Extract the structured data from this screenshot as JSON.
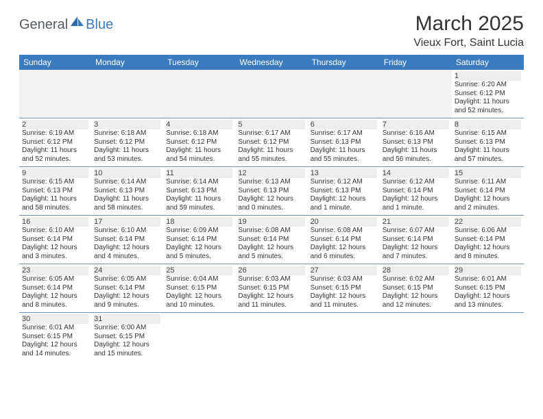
{
  "logo": {
    "text1": "General",
    "text2": "Blue"
  },
  "title": "March 2025",
  "location": "Vieux Fort, Saint Lucia",
  "colors": {
    "header_bg": "#3b7bbf",
    "header_text": "#ffffff",
    "cell_border": "#6b8fb5",
    "blank_bg": "#f2f2f2",
    "daynum_bg": "#eeeeee"
  },
  "weekdays": [
    "Sunday",
    "Monday",
    "Tuesday",
    "Wednesday",
    "Thursday",
    "Friday",
    "Saturday"
  ],
  "leadingBlanks": 6,
  "days": [
    {
      "n": 1,
      "sunrise": "6:20 AM",
      "sunset": "6:12 PM",
      "daylight": "11 hours and 52 minutes."
    },
    {
      "n": 2,
      "sunrise": "6:19 AM",
      "sunset": "6:12 PM",
      "daylight": "11 hours and 52 minutes."
    },
    {
      "n": 3,
      "sunrise": "6:18 AM",
      "sunset": "6:12 PM",
      "daylight": "11 hours and 53 minutes."
    },
    {
      "n": 4,
      "sunrise": "6:18 AM",
      "sunset": "6:12 PM",
      "daylight": "11 hours and 54 minutes."
    },
    {
      "n": 5,
      "sunrise": "6:17 AM",
      "sunset": "6:12 PM",
      "daylight": "11 hours and 55 minutes."
    },
    {
      "n": 6,
      "sunrise": "6:17 AM",
      "sunset": "6:13 PM",
      "daylight": "11 hours and 55 minutes."
    },
    {
      "n": 7,
      "sunrise": "6:16 AM",
      "sunset": "6:13 PM",
      "daylight": "11 hours and 56 minutes."
    },
    {
      "n": 8,
      "sunrise": "6:15 AM",
      "sunset": "6:13 PM",
      "daylight": "11 hours and 57 minutes."
    },
    {
      "n": 9,
      "sunrise": "6:15 AM",
      "sunset": "6:13 PM",
      "daylight": "11 hours and 58 minutes."
    },
    {
      "n": 10,
      "sunrise": "6:14 AM",
      "sunset": "6:13 PM",
      "daylight": "11 hours and 58 minutes."
    },
    {
      "n": 11,
      "sunrise": "6:14 AM",
      "sunset": "6:13 PM",
      "daylight": "11 hours and 59 minutes."
    },
    {
      "n": 12,
      "sunrise": "6:13 AM",
      "sunset": "6:13 PM",
      "daylight": "12 hours and 0 minutes."
    },
    {
      "n": 13,
      "sunrise": "6:12 AM",
      "sunset": "6:13 PM",
      "daylight": "12 hours and 1 minute."
    },
    {
      "n": 14,
      "sunrise": "6:12 AM",
      "sunset": "6:14 PM",
      "daylight": "12 hours and 1 minute."
    },
    {
      "n": 15,
      "sunrise": "6:11 AM",
      "sunset": "6:14 PM",
      "daylight": "12 hours and 2 minutes."
    },
    {
      "n": 16,
      "sunrise": "6:10 AM",
      "sunset": "6:14 PM",
      "daylight": "12 hours and 3 minutes."
    },
    {
      "n": 17,
      "sunrise": "6:10 AM",
      "sunset": "6:14 PM",
      "daylight": "12 hours and 4 minutes."
    },
    {
      "n": 18,
      "sunrise": "6:09 AM",
      "sunset": "6:14 PM",
      "daylight": "12 hours and 5 minutes."
    },
    {
      "n": 19,
      "sunrise": "6:08 AM",
      "sunset": "6:14 PM",
      "daylight": "12 hours and 5 minutes."
    },
    {
      "n": 20,
      "sunrise": "6:08 AM",
      "sunset": "6:14 PM",
      "daylight": "12 hours and 6 minutes."
    },
    {
      "n": 21,
      "sunrise": "6:07 AM",
      "sunset": "6:14 PM",
      "daylight": "12 hours and 7 minutes."
    },
    {
      "n": 22,
      "sunrise": "6:06 AM",
      "sunset": "6:14 PM",
      "daylight": "12 hours and 8 minutes."
    },
    {
      "n": 23,
      "sunrise": "6:05 AM",
      "sunset": "6:14 PM",
      "daylight": "12 hours and 8 minutes."
    },
    {
      "n": 24,
      "sunrise": "6:05 AM",
      "sunset": "6:14 PM",
      "daylight": "12 hours and 9 minutes."
    },
    {
      "n": 25,
      "sunrise": "6:04 AM",
      "sunset": "6:15 PM",
      "daylight": "12 hours and 10 minutes."
    },
    {
      "n": 26,
      "sunrise": "6:03 AM",
      "sunset": "6:15 PM",
      "daylight": "12 hours and 11 minutes."
    },
    {
      "n": 27,
      "sunrise": "6:03 AM",
      "sunset": "6:15 PM",
      "daylight": "12 hours and 11 minutes."
    },
    {
      "n": 28,
      "sunrise": "6:02 AM",
      "sunset": "6:15 PM",
      "daylight": "12 hours and 12 minutes."
    },
    {
      "n": 29,
      "sunrise": "6:01 AM",
      "sunset": "6:15 PM",
      "daylight": "12 hours and 13 minutes."
    },
    {
      "n": 30,
      "sunrise": "6:01 AM",
      "sunset": "6:15 PM",
      "daylight": "12 hours and 14 minutes."
    },
    {
      "n": 31,
      "sunrise": "6:00 AM",
      "sunset": "6:15 PM",
      "daylight": "12 hours and 15 minutes."
    }
  ],
  "labels": {
    "sunrise": "Sunrise:",
    "sunset": "Sunset:",
    "daylight": "Daylight:"
  }
}
